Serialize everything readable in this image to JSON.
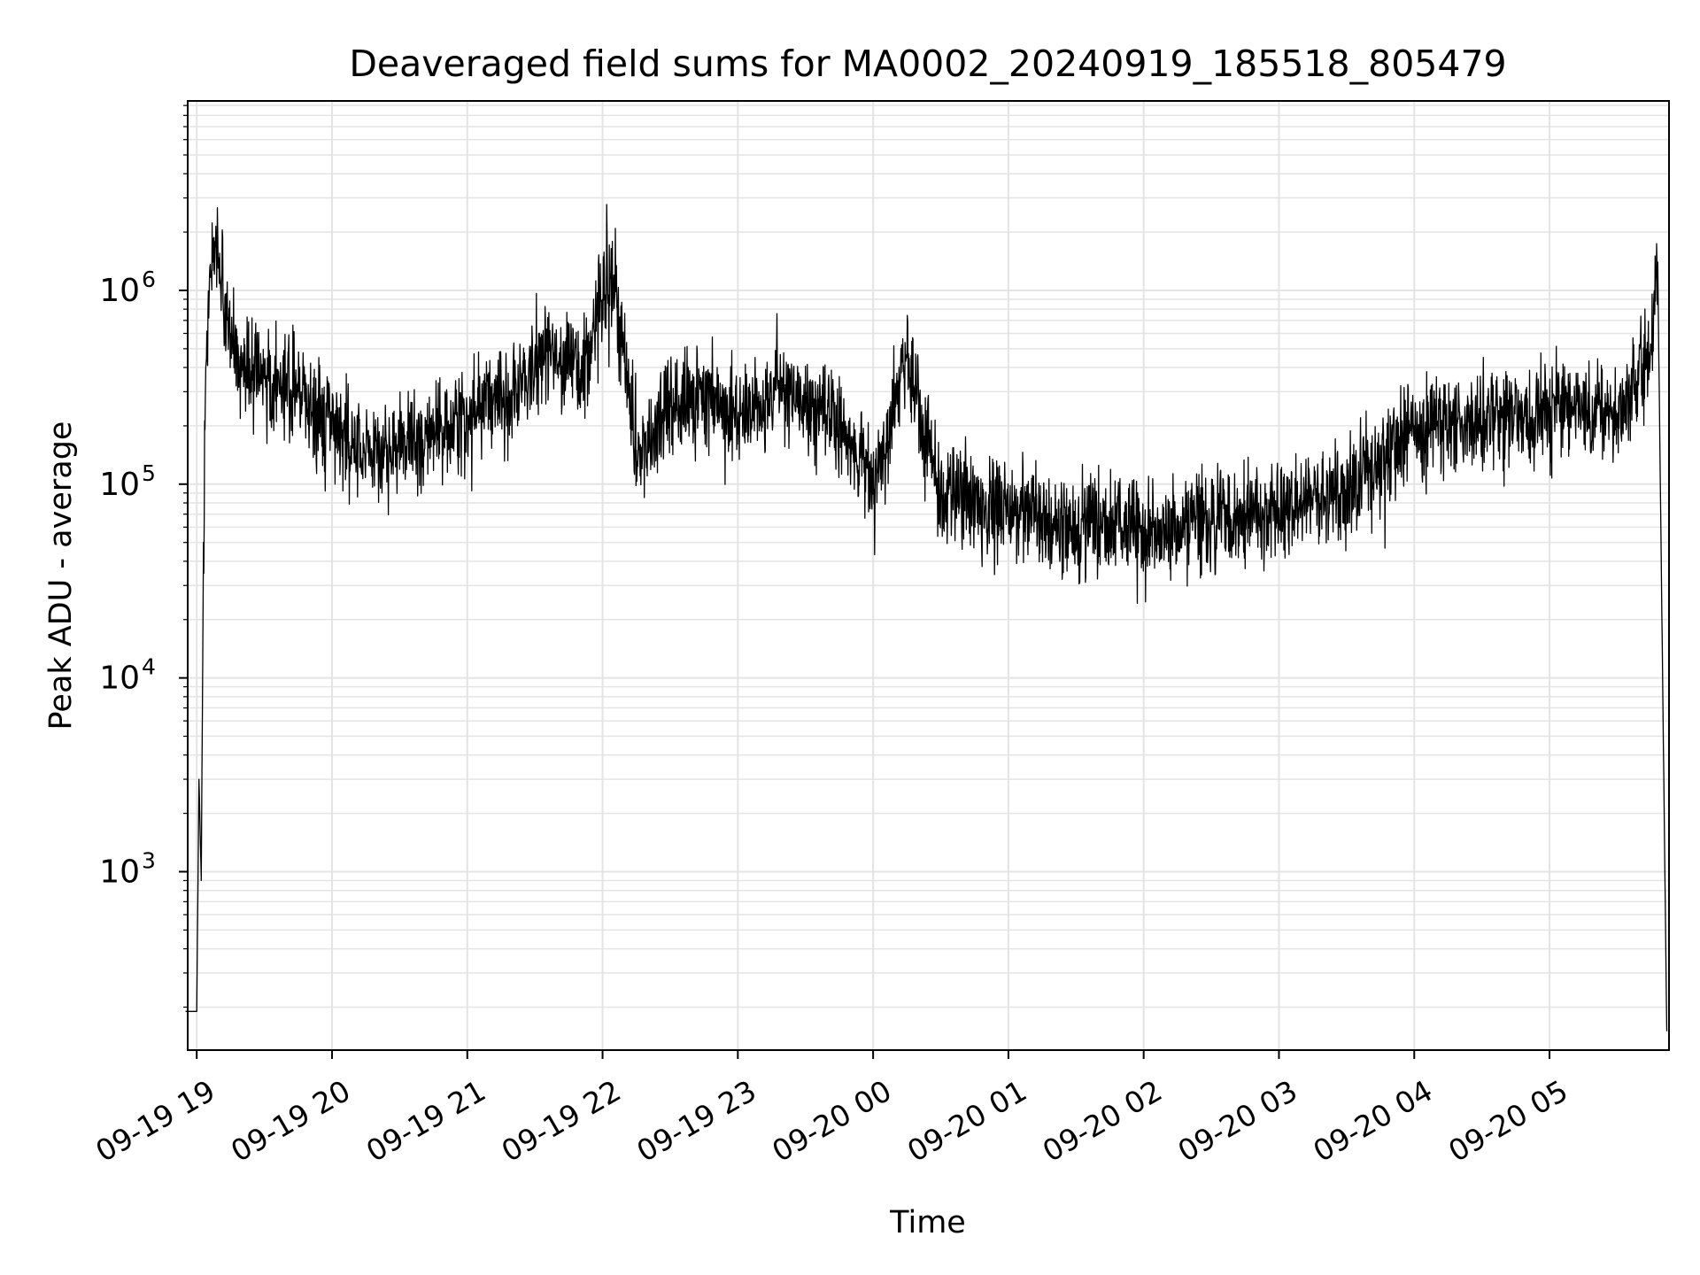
{
  "chart_data": {
    "type": "line",
    "title": "Deaveraged field sums for MA0002_20240919_185518_805479",
    "xlabel": "Time",
    "ylabel": "Peak ADU - average",
    "yscale": "log",
    "ylim": [
      120,
      9500000
    ],
    "xlim": [
      "2024-09-19 18:56",
      "2024-09-20 05:53"
    ],
    "grid": true,
    "x_tick_labels": [
      "09-19 19",
      "09-19 20",
      "09-19 21",
      "09-19 22",
      "09-19 23",
      "09-20 00",
      "09-20 01",
      "09-20 02",
      "09-20 03",
      "09-20 04",
      "09-20 05"
    ],
    "y_tick_labels": [
      {
        "base": "10",
        "exp": "3",
        "value": 1000
      },
      {
        "base": "10",
        "exp": "4",
        "value": 10000
      },
      {
        "base": "10",
        "exp": "5",
        "value": 100000
      },
      {
        "base": "10",
        "exp": "6",
        "value": 1000000
      }
    ],
    "series": [
      {
        "color": "#000000",
        "x": [
          "2024-09-19 18:55",
          "2024-09-19 19:00",
          "2024-09-19 19:01",
          "2024-09-19 19:02",
          "2024-09-19 19:03",
          "2024-09-19 19:04",
          "2024-09-19 19:05",
          "2024-09-19 19:07",
          "2024-09-19 19:09",
          "2024-09-19 19:11",
          "2024-09-19 19:15",
          "2024-09-19 19:20",
          "2024-09-19 19:30",
          "2024-09-19 19:45",
          "2024-09-19 20:00",
          "2024-09-19 20:20",
          "2024-09-19 20:40",
          "2024-09-19 21:00",
          "2024-09-19 21:20",
          "2024-09-19 21:35",
          "2024-09-19 21:50",
          "2024-09-19 22:00",
          "2024-09-19 22:05",
          "2024-09-19 22:15",
          "2024-09-19 22:30",
          "2024-09-19 22:45",
          "2024-09-19 23:00",
          "2024-09-19 23:20",
          "2024-09-19 23:40",
          "2024-09-20 00:00",
          "2024-09-20 00:15",
          "2024-09-20 00:30",
          "2024-09-20 01:00",
          "2024-09-20 01:30",
          "2024-09-20 02:00",
          "2024-09-20 02:30",
          "2024-09-20 03:00",
          "2024-09-20 03:30",
          "2024-09-20 04:00",
          "2024-09-20 04:30",
          "2024-09-20 05:00",
          "2024-09-20 05:30",
          "2024-09-20 05:45",
          "2024-09-20 05:48",
          "2024-09-20 05:52"
        ],
        "y": [
          190,
          190,
          3000,
          900,
          50000,
          400000,
          800000,
          1400000,
          1500000,
          1100000,
          600000,
          400000,
          350000,
          300000,
          180000,
          150000,
          170000,
          220000,
          300000,
          500000,
          350000,
          900000,
          1200000,
          150000,
          250000,
          300000,
          220000,
          300000,
          250000,
          100000,
          450000,
          90000,
          70000,
          60000,
          60000,
          65000,
          75000,
          90000,
          200000,
          200000,
          250000,
          220000,
          500000,
          1400000,
          150
        ]
      }
    ]
  }
}
